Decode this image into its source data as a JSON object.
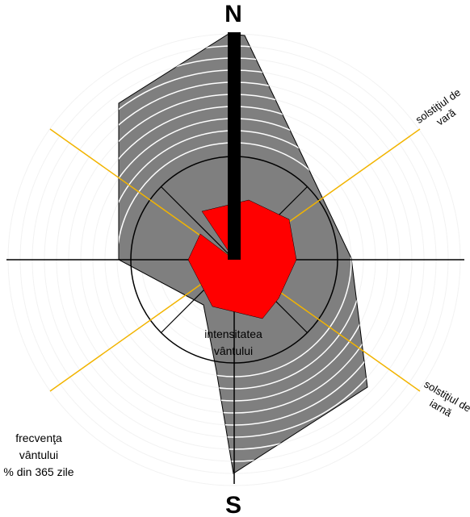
{
  "cardinals": {
    "north": "N",
    "south": "S"
  },
  "labels": {
    "summer_solstice_line1": "solstiţiul de",
    "summer_solstice_line2": "vară",
    "winter_solstice_line1": "solstiţiul de",
    "winter_solstice_line2": "iarnă",
    "intensity_line1": "intensitatea",
    "intensity_line2": "vântului",
    "frequency_line1": "frecvenţa",
    "frequency_line2": "vântului",
    "frequency_line3": "% din 365 zile"
  },
  "colors": {
    "frequency_fill": "#7f7f7f",
    "intensity_fill": "#ff0000",
    "solstice_lines": "#f2b400",
    "axes": "#000000",
    "rings": "#ffffff",
    "north_bar": "#000000"
  }
}
